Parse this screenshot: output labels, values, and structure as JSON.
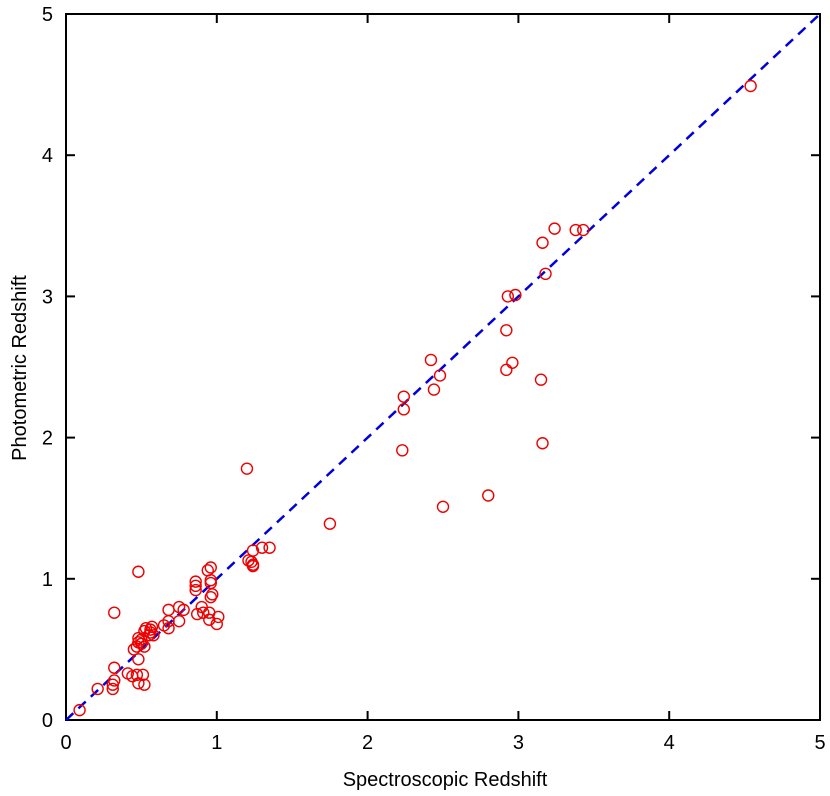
{
  "chart_data": {
    "type": "scatter",
    "xlabel": "Spectroscopic Redshift",
    "ylabel": "Photometric Redshift",
    "xlim": [
      0,
      5
    ],
    "ylim": [
      0,
      5
    ],
    "xticks": [
      0,
      1,
      2,
      3,
      4,
      5
    ],
    "yticks": [
      0,
      1,
      2,
      3,
      4,
      5
    ],
    "grid": false,
    "reference_line": {
      "from": [
        0,
        0
      ],
      "to": [
        5,
        5
      ],
      "style": "dashed",
      "color": "#0000dd"
    },
    "marker_color": "#ee0000",
    "points": [
      [
        0.09,
        0.07
      ],
      [
        0.21,
        0.22
      ],
      [
        0.31,
        0.22
      ],
      [
        0.31,
        0.25
      ],
      [
        0.32,
        0.28
      ],
      [
        0.32,
        0.37
      ],
      [
        0.32,
        0.76
      ],
      [
        0.41,
        0.33
      ],
      [
        0.44,
        0.31
      ],
      [
        0.45,
        0.5
      ],
      [
        0.47,
        0.32
      ],
      [
        0.47,
        0.52
      ],
      [
        0.48,
        0.26
      ],
      [
        0.48,
        0.43
      ],
      [
        0.48,
        0.55
      ],
      [
        0.48,
        0.58
      ],
      [
        0.48,
        1.05
      ],
      [
        0.5,
        0.54
      ],
      [
        0.5,
        0.57
      ],
      [
        0.51,
        0.32
      ],
      [
        0.52,
        0.25
      ],
      [
        0.52,
        0.52
      ],
      [
        0.52,
        0.63
      ],
      [
        0.53,
        0.65
      ],
      [
        0.55,
        0.6
      ],
      [
        0.56,
        0.62
      ],
      [
        0.56,
        0.64
      ],
      [
        0.57,
        0.66
      ],
      [
        0.58,
        0.6
      ],
      [
        0.65,
        0.67
      ],
      [
        0.68,
        0.65
      ],
      [
        0.68,
        0.7
      ],
      [
        0.68,
        0.78
      ],
      [
        0.75,
        0.8
      ],
      [
        0.75,
        0.7
      ],
      [
        0.78,
        0.78
      ],
      [
        0.86,
        0.92
      ],
      [
        0.86,
        0.95
      ],
      [
        0.86,
        0.98
      ],
      [
        0.87,
        0.75
      ],
      [
        0.9,
        0.8
      ],
      [
        0.91,
        0.76
      ],
      [
        0.94,
        1.06
      ],
      [
        0.95,
        0.71
      ],
      [
        0.95,
        0.76
      ],
      [
        0.96,
        0.87
      ],
      [
        0.96,
        0.97
      ],
      [
        0.96,
        0.99
      ],
      [
        0.96,
        1.08
      ],
      [
        0.97,
        0.89
      ],
      [
        1.0,
        0.68
      ],
      [
        1.01,
        0.73
      ],
      [
        1.2,
        1.78
      ],
      [
        1.21,
        1.13
      ],
      [
        1.23,
        1.12
      ],
      [
        1.24,
        1.09
      ],
      [
        1.24,
        1.1
      ],
      [
        1.24,
        1.2
      ],
      [
        1.3,
        1.22
      ],
      [
        1.35,
        1.22
      ],
      [
        1.75,
        1.39
      ],
      [
        2.23,
        1.91
      ],
      [
        2.24,
        2.2
      ],
      [
        2.24,
        2.29
      ],
      [
        2.42,
        2.55
      ],
      [
        2.44,
        2.34
      ],
      [
        2.48,
        2.44
      ],
      [
        2.5,
        1.51
      ],
      [
        2.8,
        1.59
      ],
      [
        2.92,
        2.48
      ],
      [
        2.92,
        2.76
      ],
      [
        2.93,
        3.0
      ],
      [
        2.96,
        2.53
      ],
      [
        2.98,
        3.01
      ],
      [
        3.15,
        2.41
      ],
      [
        3.16,
        1.96
      ],
      [
        3.16,
        3.38
      ],
      [
        3.18,
        3.16
      ],
      [
        3.24,
        3.48
      ],
      [
        3.38,
        3.47
      ],
      [
        3.43,
        3.47
      ],
      [
        4.54,
        4.49
      ]
    ]
  }
}
